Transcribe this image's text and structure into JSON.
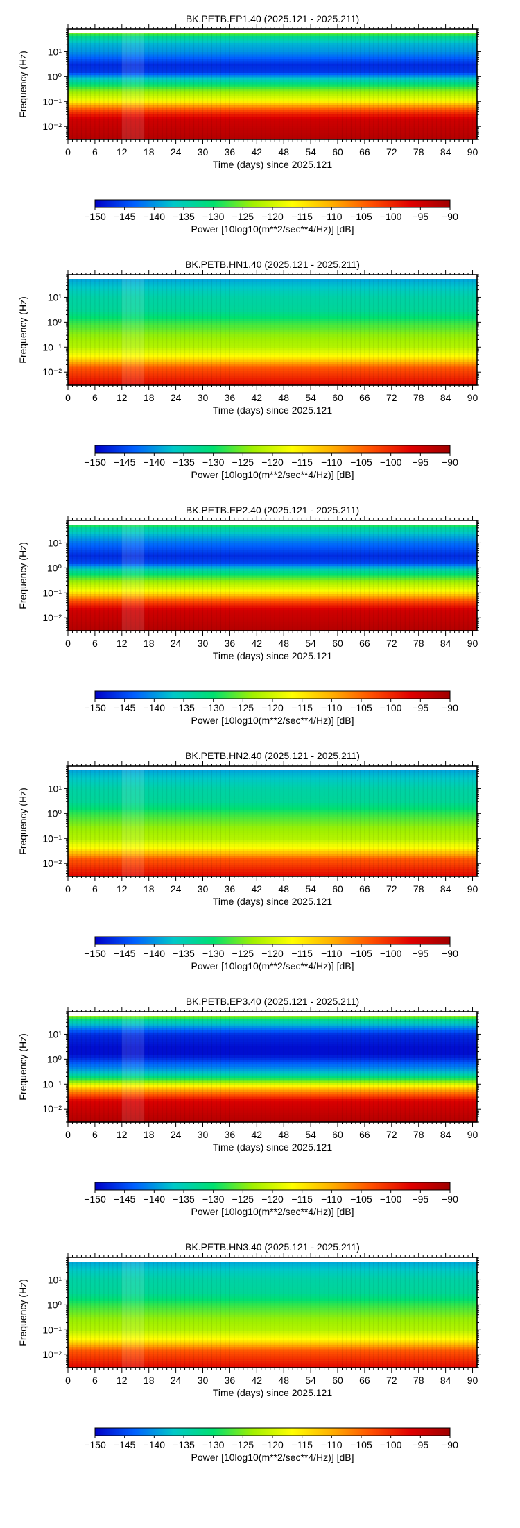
{
  "common": {
    "xlabel": "Time (days) since 2025.121",
    "ylabel": "Frequency (Hz)",
    "x_ticks": [
      "0",
      "6",
      "12",
      "18",
      "24",
      "30",
      "36",
      "42",
      "48",
      "54",
      "60",
      "66",
      "72",
      "78",
      "84",
      "90"
    ],
    "y_ticks": [
      "10¹",
      "10⁰",
      "10⁻¹",
      "10⁻²"
    ],
    "colorbar_ticks": [
      "−150",
      "−145",
      "−140",
      "−135",
      "−130",
      "−125",
      "−120",
      "−115",
      "−110",
      "−105",
      "−100",
      "−95",
      "−90"
    ],
    "colorbar_label": "Power [10log10(m**2/sec**4/Hz)] [dB]",
    "colormap": [
      "#0000c8",
      "#0060ff",
      "#00c8c8",
      "#00e070",
      "#a0f000",
      "#ffff00",
      "#ffb000",
      "#ff5000",
      "#e00000",
      "#a00000"
    ]
  },
  "chart_data": [
    {
      "type": "heatmap",
      "title": "BK.PETB.EP1.40 (2025.121 - 2025.211)",
      "xlim": [
        0,
        91
      ],
      "ylim": [
        0.003,
        80
      ],
      "y_scale": "log",
      "clim": [
        -150,
        -90
      ],
      "profile": [
        [
          60,
          -123
        ],
        [
          40,
          -132
        ],
        [
          20,
          -138
        ],
        [
          10,
          -140
        ],
        [
          3,
          -147
        ],
        [
          1.5,
          -146
        ],
        [
          0.8,
          -136
        ],
        [
          0.3,
          -125
        ],
        [
          0.12,
          -118
        ],
        [
          0.05,
          -104
        ],
        [
          0.02,
          -95
        ],
        [
          0.003,
          -92
        ]
      ]
    },
    {
      "type": "heatmap",
      "title": "BK.PETB.HN1.40 (2025.121 - 2025.211)",
      "xlim": [
        0,
        91
      ],
      "ylim": [
        0.003,
        80
      ],
      "y_scale": "log",
      "clim": [
        -150,
        -90
      ],
      "profile": [
        [
          70,
          -140
        ],
        [
          40,
          -138
        ],
        [
          10,
          -134
        ],
        [
          3,
          -133
        ],
        [
          1,
          -128
        ],
        [
          0.3,
          -124
        ],
        [
          0.1,
          -122
        ],
        [
          0.04,
          -116
        ],
        [
          0.015,
          -104
        ],
        [
          0.003,
          -97
        ]
      ]
    },
    {
      "type": "heatmap",
      "title": "BK.PETB.EP2.40 (2025.121 - 2025.211)",
      "xlim": [
        0,
        91
      ],
      "ylim": [
        0.003,
        80
      ],
      "y_scale": "log",
      "clim": [
        -150,
        -90
      ],
      "profile": [
        [
          60,
          -123
        ],
        [
          40,
          -133
        ],
        [
          20,
          -138
        ],
        [
          10,
          -142
        ],
        [
          3,
          -147
        ],
        [
          1.5,
          -145
        ],
        [
          0.8,
          -134
        ],
        [
          0.3,
          -124
        ],
        [
          0.12,
          -117
        ],
        [
          0.05,
          -104
        ],
        [
          0.02,
          -95
        ],
        [
          0.003,
          -92
        ]
      ]
    },
    {
      "type": "heatmap",
      "title": "BK.PETB.HN2.40 (2025.121 - 2025.211)",
      "xlim": [
        0,
        91
      ],
      "ylim": [
        0.003,
        80
      ],
      "y_scale": "log",
      "clim": [
        -150,
        -90
      ],
      "profile": [
        [
          70,
          -140
        ],
        [
          40,
          -138
        ],
        [
          10,
          -134
        ],
        [
          3,
          -133
        ],
        [
          1,
          -128
        ],
        [
          0.3,
          -124
        ],
        [
          0.1,
          -122
        ],
        [
          0.04,
          -116
        ],
        [
          0.015,
          -104
        ],
        [
          0.003,
          -97
        ]
      ]
    },
    {
      "type": "heatmap",
      "title": "BK.PETB.EP3.40 (2025.121 - 2025.211)",
      "xlim": [
        0,
        91
      ],
      "ylim": [
        0.003,
        80
      ],
      "y_scale": "log",
      "clim": [
        -150,
        -90
      ],
      "profile": [
        [
          60,
          -120
        ],
        [
          40,
          -132
        ],
        [
          20,
          -140
        ],
        [
          10,
          -147
        ],
        [
          3,
          -149
        ],
        [
          1.5,
          -149
        ],
        [
          0.8,
          -145
        ],
        [
          0.3,
          -138
        ],
        [
          0.15,
          -128
        ],
        [
          0.06,
          -110
        ],
        [
          0.02,
          -96
        ],
        [
          0.003,
          -92
        ]
      ]
    },
    {
      "type": "heatmap",
      "title": "BK.PETB.HN3.40 (2025.121 - 2025.211)",
      "xlim": [
        0,
        91
      ],
      "ylim": [
        0.003,
        80
      ],
      "y_scale": "log",
      "clim": [
        -150,
        -90
      ],
      "profile": [
        [
          70,
          -140
        ],
        [
          40,
          -138
        ],
        [
          10,
          -134
        ],
        [
          3,
          -133
        ],
        [
          1,
          -128
        ],
        [
          0.3,
          -124
        ],
        [
          0.1,
          -122
        ],
        [
          0.04,
          -116
        ],
        [
          0.015,
          -104
        ],
        [
          0.003,
          -97
        ]
      ]
    }
  ]
}
